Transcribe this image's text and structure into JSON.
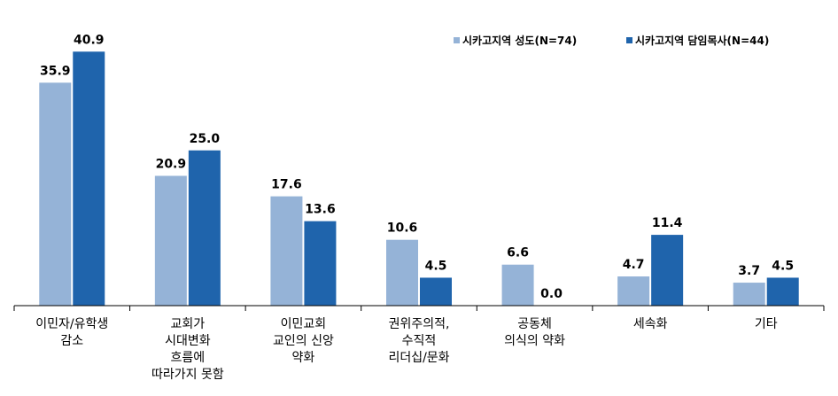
{
  "chart_data": {
    "type": "bar",
    "title": "",
    "xlabel": "",
    "ylabel": "",
    "ylim": [
      0,
      45
    ],
    "grid": false,
    "legend_position": "top-right",
    "categories": [
      [
        "이민자/유학생",
        "감소"
      ],
      [
        "교회가",
        "시대변화",
        "흐름에",
        "따라가지 못함"
      ],
      [
        "이민교회",
        "교인의 신앙",
        "약화"
      ],
      [
        "권위주의적,",
        "수직적",
        "리더십/문화"
      ],
      [
        "공동체",
        "의식의 약화"
      ],
      [
        "세속화"
      ],
      [
        "기타"
      ]
    ],
    "series": [
      {
        "name": "시카고지역 성도(N=74)",
        "color": "#95B3D7",
        "values": [
          35.9,
          20.9,
          17.6,
          10.6,
          6.6,
          4.7,
          3.7
        ],
        "labels": [
          "35.9",
          "20.9",
          "17.6",
          "10.6",
          "6.6",
          "4.7",
          "3.7"
        ]
      },
      {
        "name": "시카고지역 담임목사(N=44)",
        "color": "#1F64AC",
        "values": [
          40.9,
          25.0,
          13.6,
          4.5,
          0.0,
          11.4,
          4.5
        ],
        "labels": [
          "40.9",
          "25.0",
          "13.6",
          "4.5",
          "0.0",
          "11.4",
          "4.5"
        ]
      }
    ]
  }
}
